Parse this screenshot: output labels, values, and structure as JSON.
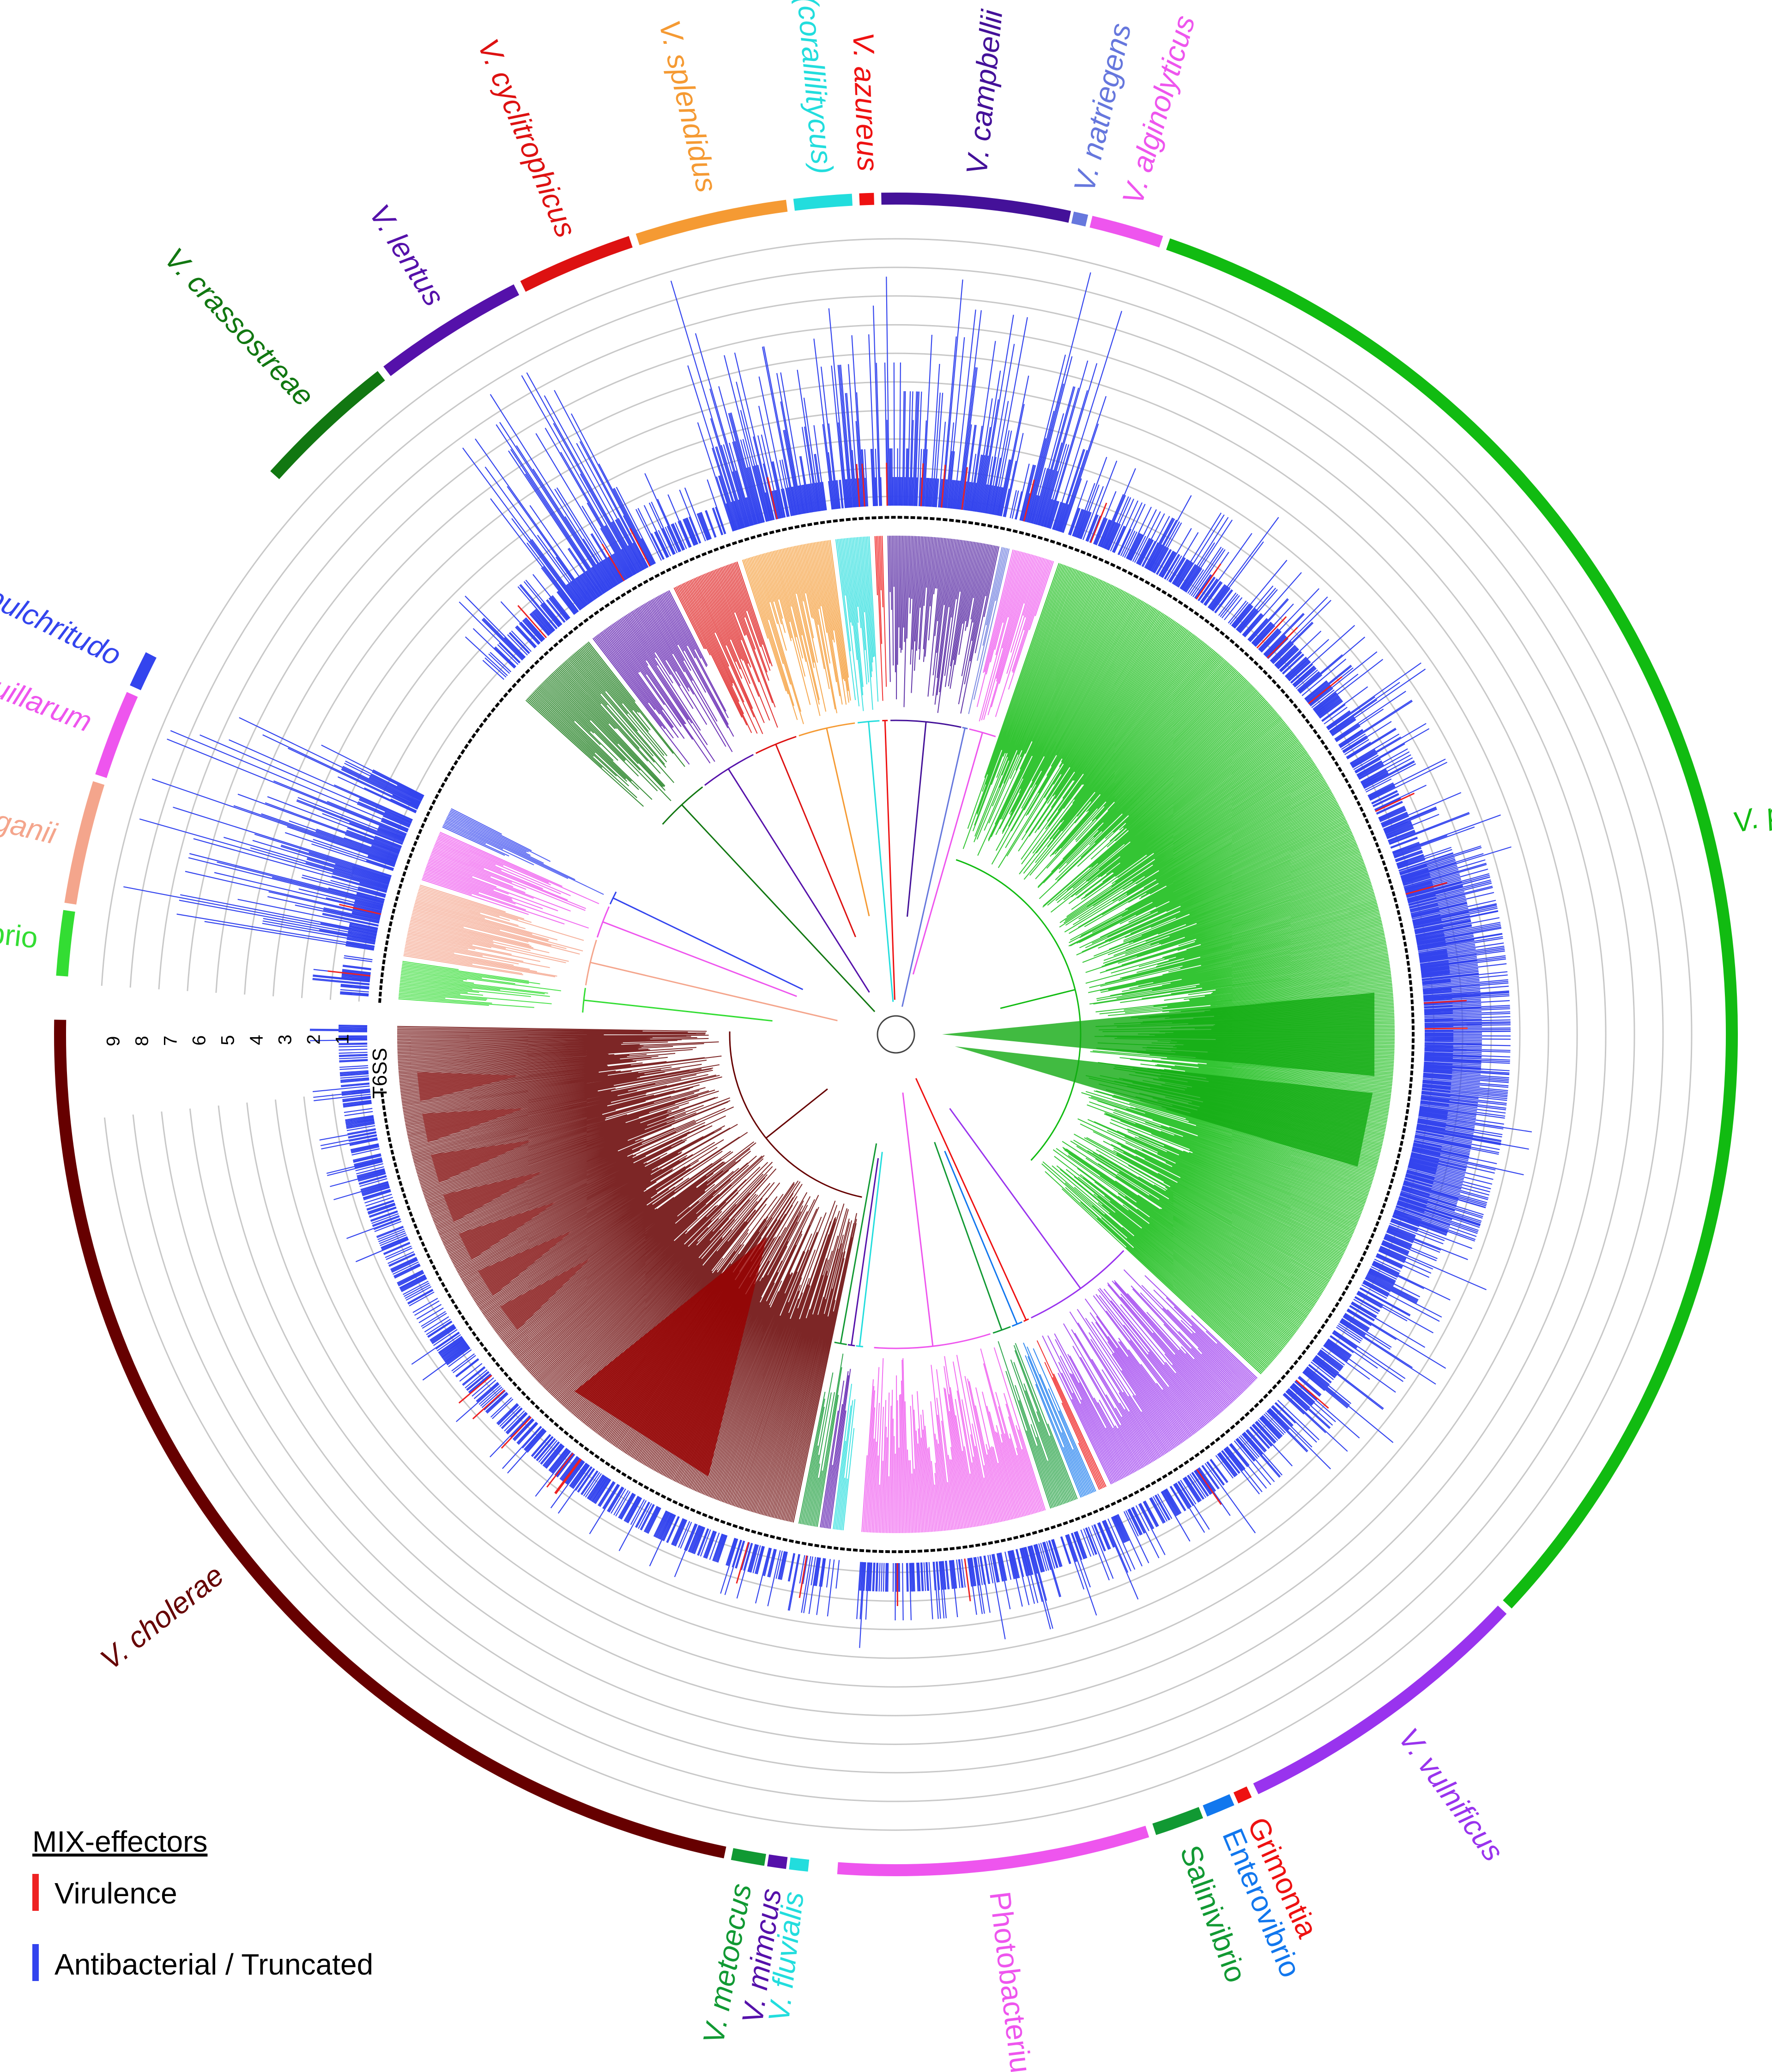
{
  "figure": {
    "type": "circular phylogenetic tree with MIX-effector bar tracks",
    "track_label": "T6SS",
    "scale_labels": [
      "1",
      "2",
      "3",
      "4",
      "5",
      "6",
      "7",
      "8",
      "9"
    ]
  },
  "clades": [
    {
      "name": "Aliivibrio",
      "italic": false,
      "color": "#33dd33",
      "start_deg": 274.0,
      "end_deg": 278.5
    },
    {
      "name": "V. breoganii",
      "italic": true,
      "color": "#f4a58c",
      "start_deg": 279.0,
      "end_deg": 287.5
    },
    {
      "name": "V. anguillarum",
      "italic": true,
      "color": "#ee55ee",
      "start_deg": 288.0,
      "end_deg": 294.0
    },
    {
      "name": "V. nigripulchritudo",
      "italic": true,
      "color": "#3344ee",
      "start_deg": 294.5,
      "end_deg": 297.0
    },
    {
      "name": "V. crassostreae",
      "italic": true,
      "color": "#117711",
      "start_deg": 312.0,
      "end_deg": 322.0
    },
    {
      "name": "V. lentus",
      "italic": true,
      "color": "#5511aa",
      "start_deg": 322.5,
      "end_deg": 333.0
    },
    {
      "name": "V. cyclitrophicus",
      "italic": true,
      "color": "#dd1111",
      "start_deg": 333.5,
      "end_deg": 341.5
    },
    {
      "name": "V. splendidus",
      "italic": true,
      "color": "#f59a33",
      "start_deg": 342.0,
      "end_deg": 352.5
    },
    {
      "name": "V. orientalis (corallilitycus)",
      "italic": true,
      "color": "#22dddd",
      "start_deg": 353.0,
      "end_deg": 357.0
    },
    {
      "name": "V. azureus",
      "italic": true,
      "color": "#ee1111",
      "start_deg": 357.5,
      "end_deg": 358.5
    },
    {
      "name": "V. campbellii",
      "italic": true,
      "color": "#441199",
      "start_deg": 359.0,
      "end_deg": 372.0
    },
    {
      "name": "V. natriegens",
      "italic": true,
      "color": "#6677dd",
      "start_deg": 372.2,
      "end_deg": 373.2
    },
    {
      "name": "V. alginolyticus",
      "italic": true,
      "color": "#ee55ee",
      "start_deg": 373.5,
      "end_deg": 378.5
    },
    {
      "name": "V. parahaemolyticus",
      "italic": true,
      "color": "#11bb11",
      "start_deg": 379.0,
      "end_deg": 493.0
    },
    {
      "name": "V. vulnificus",
      "italic": true,
      "color": "#9933ee",
      "start_deg": 493.5,
      "end_deg": 514.5
    },
    {
      "name": "Grimontia",
      "italic": false,
      "color": "#ee1111",
      "start_deg": 515.0,
      "end_deg": 516.0
    },
    {
      "name": "Enterovibrio",
      "italic": false,
      "color": "#1177ee",
      "start_deg": 516.3,
      "end_deg": 518.3
    },
    {
      "name": "Salinivibrio",
      "italic": false,
      "color": "#119933",
      "start_deg": 518.6,
      "end_deg": 522.0
    },
    {
      "name": "Photobacterium",
      "italic": false,
      "color": "#ee55ee",
      "start_deg": 522.5,
      "end_deg": 544.0
    },
    {
      "name": "V. fluvialis",
      "italic": true,
      "color": "#22dddd",
      "start_deg": 546.0,
      "end_deg": 547.3
    },
    {
      "name": "V. mimcus",
      "italic": true,
      "color": "#5511aa",
      "start_deg": 547.5,
      "end_deg": 548.8
    },
    {
      "name": "V. metoecus",
      "italic": true,
      "color": "#119933",
      "start_deg": 549.0,
      "end_deg": 551.3
    },
    {
      "name": "V. choleraе",
      "italic": true,
      "color": "#660000",
      "start_deg": 551.8,
      "end_deg": 631.0
    }
  ],
  "legend": {
    "title": "MIX-effectors",
    "items": [
      {
        "label": "Virulence",
        "color": "#ee2222"
      },
      {
        "label": "Antibacterial / Truncated",
        "color": "#3344ee"
      }
    ]
  }
}
